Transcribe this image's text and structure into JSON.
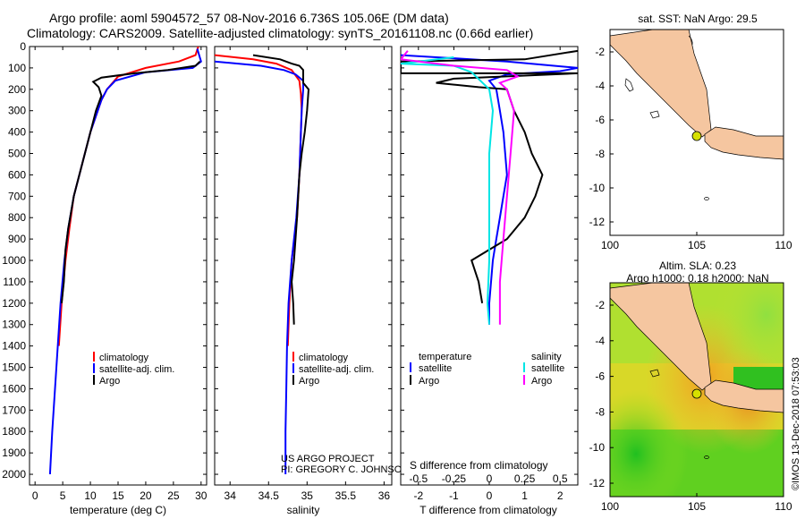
{
  "header": {
    "line1": "Argo profile: aoml 5904572_57 08-Nov-2016 6.736S 105.06E (DM data)",
    "line2": "Climatology: CARS2009. Satellite-adjusted climatology: synTS_20161108.nc (0.66d earlier)"
  },
  "colors": {
    "climatology": "#ff0000",
    "satellite": "#0000ff",
    "argo": "#000000",
    "sat_salinity": "#00e5e5",
    "argo_salinity": "#ff00ff",
    "land": "#f5c6a0"
  },
  "chart_data": [
    {
      "type": "line",
      "title": "",
      "xlabel": "temperature (deg C)",
      "ylabel": "",
      "xlim": [
        -1,
        31
      ],
      "ylim": [
        2050,
        0
      ],
      "xticks": [
        0,
        5,
        10,
        15,
        20,
        25,
        30
      ],
      "yticks": [
        0,
        100,
        200,
        300,
        400,
        500,
        600,
        700,
        800,
        900,
        1000,
        1100,
        1200,
        1300,
        1400,
        1500,
        1600,
        1700,
        1800,
        1900,
        2000
      ],
      "legend": [
        "climatology",
        "satellite-adj. clim.",
        "Argo"
      ],
      "series": [
        {
          "name": "climatology",
          "points": [
            [
              29.5,
              0
            ],
            [
              29,
              40
            ],
            [
              26,
              70
            ],
            [
              20,
              100
            ],
            [
              15,
              140
            ],
            [
              13,
              200
            ],
            [
              12,
              250
            ],
            [
              10,
              400
            ],
            [
              8.5,
              550
            ],
            [
              7,
              700
            ],
            [
              6.2,
              850
            ],
            [
              5.5,
              1000
            ],
            [
              4.8,
              1200
            ],
            [
              4.3,
              1400
            ]
          ]
        },
        {
          "name": "satellite-adj. clim.",
          "points": [
            [
              29.3,
              10
            ],
            [
              30,
              70
            ],
            [
              28.5,
              100
            ],
            [
              20,
              120
            ],
            [
              14.5,
              160
            ],
            [
              13,
              200
            ],
            [
              12,
              250
            ],
            [
              10,
              400
            ],
            [
              8.5,
              550
            ],
            [
              7,
              700
            ],
            [
              6,
              850
            ],
            [
              5.3,
              1000
            ],
            [
              4.6,
              1200
            ],
            [
              4.1,
              1400
            ],
            [
              3.6,
              1600
            ],
            [
              3.1,
              1800
            ],
            [
              2.7,
              2000
            ]
          ]
        },
        {
          "name": "Argo",
          "points": [
            [
              29.8,
              70
            ],
            [
              29,
              90
            ],
            [
              24,
              110
            ],
            [
              18,
              125
            ],
            [
              12,
              145
            ],
            [
              10.5,
              165
            ],
            [
              11.5,
              190
            ],
            [
              12,
              230
            ],
            [
              11,
              300
            ],
            [
              10,
              400
            ],
            [
              8.5,
              550
            ],
            [
              7,
              700
            ],
            [
              6,
              850
            ],
            [
              5.5,
              950
            ],
            [
              5.2,
              1100
            ],
            [
              4.8,
              1200
            ]
          ]
        }
      ]
    },
    {
      "type": "line",
      "xlabel": "salinity",
      "xlim": [
        33.8,
        36.1
      ],
      "ylim": [
        2050,
        0
      ],
      "xticks": [
        34,
        34.5,
        35,
        35.5,
        36
      ],
      "xticklabels": [
        "34",
        "34.5",
        "35",
        "35.5",
        "36"
      ],
      "legend": [
        "climatology",
        "satellite-adj. clim.",
        "Argo"
      ],
      "series": [
        {
          "name": "climatology",
          "points": [
            [
              33.8,
              40
            ],
            [
              34.3,
              60
            ],
            [
              34.6,
              80
            ],
            [
              34.8,
              110
            ],
            [
              34.9,
              160
            ],
            [
              34.92,
              220
            ],
            [
              34.93,
              300
            ],
            [
              34.92,
              400
            ],
            [
              34.9,
              600
            ],
            [
              34.87,
              800
            ],
            [
              34.8,
              1000
            ],
            [
              34.77,
              1200
            ],
            [
              34.75,
              1400
            ]
          ]
        },
        {
          "name": "satellite-adj. clim.",
          "points": [
            [
              33.8,
              70
            ],
            [
              34.4,
              90
            ],
            [
              34.7,
              110
            ],
            [
              34.85,
              130
            ],
            [
              34.95,
              160
            ],
            [
              34.95,
              200
            ],
            [
              34.93,
              300
            ],
            [
              34.92,
              400
            ],
            [
              34.9,
              600
            ],
            [
              34.86,
              800
            ],
            [
              34.8,
              1000
            ],
            [
              34.76,
              1200
            ],
            [
              34.74,
              1400
            ],
            [
              34.73,
              1600
            ],
            [
              34.72,
              1800
            ],
            [
              34.72,
              2000
            ]
          ]
        },
        {
          "name": "Argo",
          "points": [
            [
              34.3,
              40
            ],
            [
              34.65,
              60
            ],
            [
              34.8,
              80
            ],
            [
              34.9,
              90
            ],
            [
              34.95,
              110
            ],
            [
              34.95,
              170
            ],
            [
              35.02,
              200
            ],
            [
              35.0,
              300
            ],
            [
              34.97,
              400
            ],
            [
              34.93,
              500
            ],
            [
              34.9,
              600
            ],
            [
              34.87,
              800
            ],
            [
              34.83,
              1000
            ],
            [
              34.8,
              1100
            ],
            [
              34.82,
              1200
            ],
            [
              34.83,
              1300
            ]
          ]
        }
      ],
      "annotation": {
        "line1": "US ARGO PROJECT",
        "line2": "PI: GREGORY C. JOHNSON"
      }
    },
    {
      "type": "line",
      "xlabel": "T difference from climatology",
      "xlabel_top": "S difference from climatology",
      "xlim": [
        -2.5,
        2.5
      ],
      "ylim": [
        2050,
        0
      ],
      "xticks": [
        -2,
        -1,
        0,
        1,
        2
      ],
      "top_ticklabels": [
        "-0.5",
        "-0.25",
        "0",
        "0.25",
        "0.5"
      ],
      "legend_left_title": "temperature",
      "legend_right_title": "salinity",
      "legend": [
        "satellite",
        "Argo",
        "satellite",
        "Argo"
      ],
      "series": [
        {
          "name": "temperature satellite",
          "points": [
            [
              -2.5,
              40
            ],
            [
              0.5,
              70
            ],
            [
              2.5,
              100
            ],
            [
              2,
              115
            ],
            [
              0.5,
              130
            ],
            [
              0,
              160
            ],
            [
              0.2,
              200
            ],
            [
              0.3,
              300
            ],
            [
              0.4,
              400
            ],
            [
              0.45,
              500
            ],
            [
              0.5,
              600
            ],
            [
              0.4,
              700
            ],
            [
              0.3,
              800
            ],
            [
              0.2,
              900
            ],
            [
              0.1,
              1000
            ],
            [
              0.05,
              1100
            ],
            [
              0,
              1200
            ],
            [
              0,
              1300
            ]
          ]
        },
        {
          "name": "temperature Argo",
          "points": [
            [
              2.5,
              20
            ],
            [
              1,
              60
            ],
            [
              -2.5,
              70
            ],
            [
              -2.5,
              125
            ],
            [
              2.5,
              125
            ],
            [
              -1,
              150
            ],
            [
              -1.5,
              170
            ],
            [
              -0.3,
              190
            ],
            [
              0.5,
              200
            ],
            [
              0.7,
              300
            ],
            [
              1,
              400
            ],
            [
              1.2,
              500
            ],
            [
              1.5,
              600
            ],
            [
              1.3,
              700
            ],
            [
              1,
              800
            ],
            [
              0.5,
              900
            ],
            [
              -0.5,
              1000
            ],
            [
              -0.3,
              1100
            ],
            [
              -0.2,
              1200
            ]
          ]
        },
        {
          "name": "salinity satellite",
          "points": [
            [
              -1,
              50
            ],
            [
              -2,
              70
            ],
            [
              -2.5,
              80
            ],
            [
              -1,
              90
            ],
            [
              -0.5,
              120
            ],
            [
              0,
              200
            ],
            [
              0.1,
              300
            ],
            [
              0,
              500
            ],
            [
              0,
              800
            ],
            [
              0,
              1000
            ],
            [
              -0.05,
              1200
            ],
            [
              0,
              1300
            ]
          ]
        },
        {
          "name": "salinity Argo",
          "points": [
            [
              -2.3,
              20
            ],
            [
              -2.5,
              60
            ],
            [
              -1,
              90
            ],
            [
              0.5,
              110
            ],
            [
              0.8,
              140
            ],
            [
              0.3,
              170
            ],
            [
              0.5,
              200
            ],
            [
              0.7,
              300
            ],
            [
              0.6,
              500
            ],
            [
              0.5,
              700
            ],
            [
              0.4,
              900
            ],
            [
              0.3,
              1100
            ],
            [
              0.3,
              1300
            ]
          ]
        }
      ]
    }
  ],
  "map_top": {
    "title": "sat. SST: NaN Argo: 29.5",
    "yticks": [
      "-2",
      "-4",
      "-6",
      "-8",
      "-10",
      "-12"
    ],
    "xticks": [
      "100",
      "105",
      "110"
    ]
  },
  "map_bottom": {
    "title1": "Altim. SLA: 0.23",
    "title2": "Argo h1000: 0.18 h2000: NaN",
    "yticks": [
      "-2",
      "-4",
      "-6",
      "-8",
      "-10",
      "-12"
    ],
    "xticks": [
      "100",
      "105",
      "110"
    ]
  },
  "credit": "©IMOS 13-Dec-2018 07:53:03"
}
